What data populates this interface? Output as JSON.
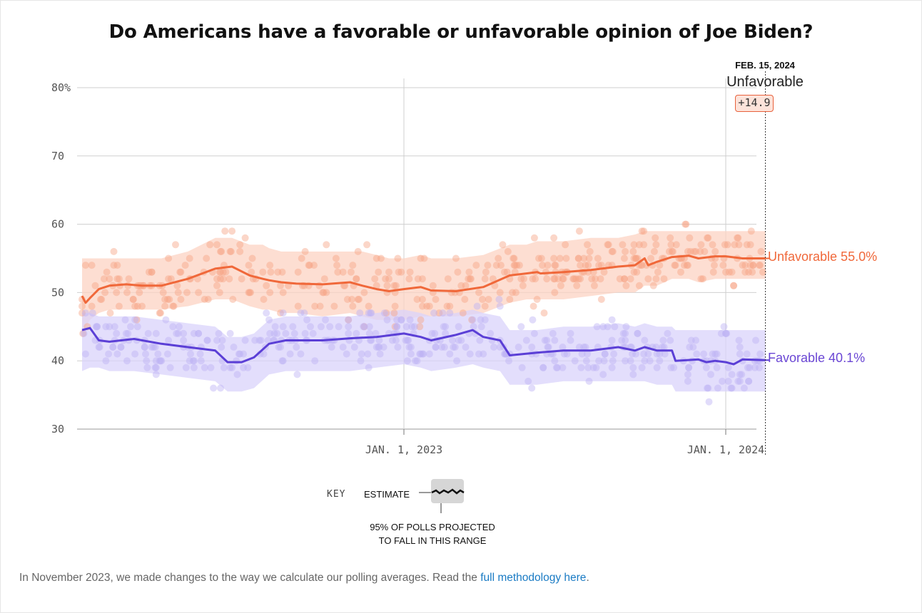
{
  "chart_data": {
    "type": "line",
    "title": "Do Americans have a favorable or unfavorable opinion of Joe Biden?",
    "ylim": [
      30,
      80
    ],
    "y_ticks": [
      "80%",
      "70",
      "60",
      "50",
      "40",
      "30"
    ],
    "x_tick_labels": [
      "JAN. 1, 2023",
      "JAN. 1, 2024"
    ],
    "x_range": [
      "2022-01-01",
      "2024-02-15"
    ],
    "grid": true,
    "series": [
      {
        "name": "Unfavorable",
        "color": "#f0683a",
        "band_color": "#fcd3c3",
        "dot_color": "#f6a585",
        "x": [
          "2022-01-01",
          "2022-01-05",
          "2022-01-10",
          "2022-01-20",
          "2022-02-01",
          "2022-02-20",
          "2022-03-10",
          "2022-04-01",
          "2022-05-01",
          "2022-06-01",
          "2022-06-20",
          "2022-07-10",
          "2022-07-25",
          "2022-08-01",
          "2022-08-15",
          "2022-09-01",
          "2022-10-01",
          "2022-11-01",
          "2022-11-15",
          "2022-12-01",
          "2022-12-15",
          "2023-01-01",
          "2023-01-20",
          "2023-02-01",
          "2023-03-01",
          "2023-04-01",
          "2023-05-01",
          "2023-05-20",
          "2023-06-01",
          "2023-06-05",
          "2023-07-01",
          "2023-08-01",
          "2023-09-01",
          "2023-09-20",
          "2023-10-01",
          "2023-10-05",
          "2023-10-15",
          "2023-11-01",
          "2023-11-20",
          "2023-12-01",
          "2023-12-20",
          "2024-01-01",
          "2024-01-20",
          "2024-02-15"
        ],
        "y": [
          49.5,
          48.5,
          49.2,
          50.5,
          51.0,
          51.2,
          51.0,
          51.0,
          52.0,
          53.5,
          53.8,
          52.5,
          52.0,
          51.8,
          51.5,
          51.3,
          51.2,
          51.5,
          51.0,
          50.5,
          50.2,
          50.5,
          50.8,
          50.3,
          50.2,
          50.8,
          52.5,
          52.8,
          53.0,
          52.8,
          53.0,
          53.3,
          53.8,
          54.0,
          55.0,
          54.0,
          54.5,
          55.2,
          55.4,
          55.0,
          55.3,
          55.3,
          55.0,
          55.0
        ],
        "band_low": [
          44,
          45,
          46,
          47,
          47.5,
          47.5,
          47.5,
          47.5,
          48,
          49,
          49,
          48,
          47.5,
          47.5,
          47,
          47,
          46.5,
          47,
          46.5,
          46,
          46,
          46,
          46.5,
          46.5,
          46.5,
          47,
          48.5,
          49,
          49,
          49,
          49,
          49.5,
          50,
          50,
          51,
          51,
          51,
          52,
          52,
          51.5,
          52,
          52,
          52,
          52
        ],
        "band_high": [
          55,
          55,
          55,
          55,
          55,
          55,
          55,
          55,
          56,
          58,
          58,
          57,
          57,
          56.5,
          56,
          56,
          56,
          56,
          56,
          55.5,
          55,
          55,
          55.5,
          55,
          55,
          55.5,
          57,
          57,
          57.5,
          57.5,
          57.5,
          58,
          58,
          58.5,
          59,
          59,
          59,
          59,
          59,
          59,
          59,
          59,
          59,
          59
        ]
      },
      {
        "name": "Favorable",
        "color": "#5b3fd6",
        "band_color": "#dad3fb",
        "dot_color": "#bdb1f3",
        "x": [
          "2022-01-01",
          "2022-01-10",
          "2022-01-20",
          "2022-02-01",
          "2022-03-01",
          "2022-04-01",
          "2022-05-01",
          "2022-06-01",
          "2022-06-15",
          "2022-07-01",
          "2022-07-15",
          "2022-08-01",
          "2022-08-20",
          "2022-09-01",
          "2022-10-01",
          "2022-11-01",
          "2022-12-01",
          "2023-01-01",
          "2023-01-20",
          "2023-02-01",
          "2023-03-01",
          "2023-03-20",
          "2023-04-01",
          "2023-04-20",
          "2023-05-01",
          "2023-06-01",
          "2023-07-01",
          "2023-08-01",
          "2023-09-01",
          "2023-09-20",
          "2023-10-01",
          "2023-10-15",
          "2023-11-01",
          "2023-11-05",
          "2023-12-01",
          "2023-12-10",
          "2023-12-20",
          "2024-01-01",
          "2024-01-10",
          "2024-01-20",
          "2024-02-15"
        ],
        "y": [
          44.5,
          44.8,
          43.0,
          42.8,
          43.2,
          42.5,
          42.0,
          41.5,
          39.8,
          39.8,
          40.5,
          42.5,
          43.0,
          43.0,
          43.0,
          43.3,
          43.5,
          44.0,
          43.5,
          43.0,
          43.8,
          44.5,
          43.5,
          43.0,
          40.8,
          41.2,
          41.5,
          41.5,
          42.0,
          41.5,
          42.0,
          41.5,
          41.5,
          40.0,
          40.2,
          39.8,
          40.0,
          39.8,
          39.5,
          40.2,
          40.1
        ],
        "band_low": [
          38.5,
          39,
          39,
          38.5,
          38.5,
          38,
          37.5,
          37,
          35.5,
          35.5,
          36,
          38,
          38.5,
          38.5,
          38.5,
          38.5,
          39,
          39.5,
          39,
          38.5,
          39,
          39.5,
          39,
          38.5,
          36.5,
          36.5,
          37,
          37,
          37,
          37,
          37,
          36.5,
          36.5,
          35.5,
          35.5,
          35.5,
          35.5,
          35.5,
          35.5,
          35.5,
          35.5
        ],
        "band_high": [
          47,
          47,
          46.5,
          46.5,
          46.5,
          46,
          45.5,
          45,
          43.5,
          43.5,
          44,
          46,
          46.5,
          46.5,
          46.5,
          46.5,
          47,
          47.5,
          47,
          46.5,
          47,
          47.5,
          47,
          46.5,
          44.5,
          44.5,
          45,
          45,
          45.5,
          45,
          45.5,
          45,
          45,
          44.5,
          44.5,
          44.5,
          44.5,
          44.5,
          44.5,
          44.5,
          44.5
        ]
      }
    ]
  },
  "highlight": {
    "date_label": "FEB. 15, 2024",
    "leader_label": "Unfavorable",
    "margin_label": "+14.9"
  },
  "end_labels": {
    "unfavorable": "Unfavorable 55.0%",
    "favorable": "Favorable 40.1%"
  },
  "key": {
    "title": "KEY",
    "estimate_label": "ESTIMATE",
    "range_label_line1": "95% OF POLLS PROJECTED",
    "range_label_line2": "TO FALL IN THIS RANGE"
  },
  "footnote": {
    "text": "In November 2023, we made changes to the way we calculate our polling averages. Read the ",
    "link_text": "full methodology here",
    "suffix": "."
  }
}
